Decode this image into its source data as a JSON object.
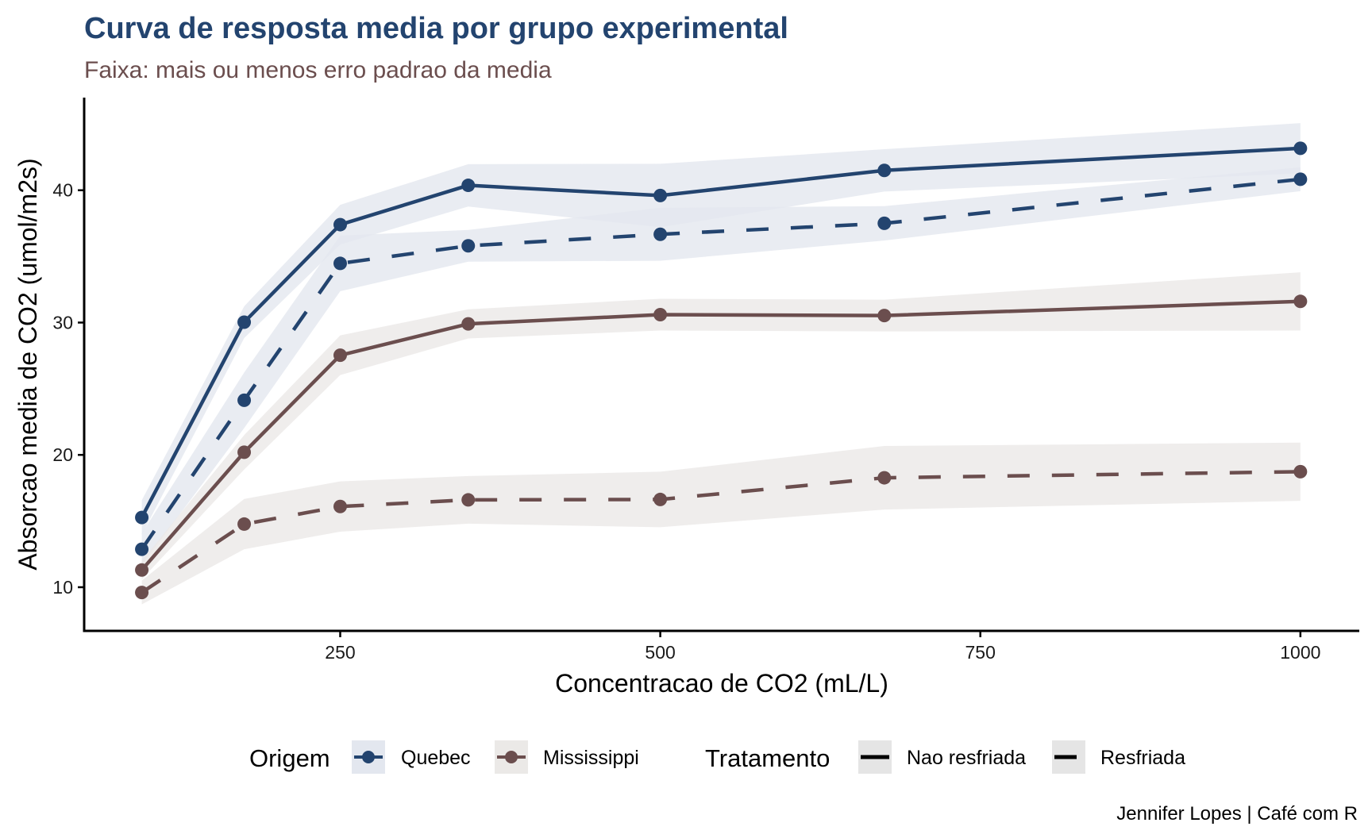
{
  "chart_data": {
    "type": "line",
    "title": "Curva de resposta media por grupo experimental",
    "subtitle": "Faixa: mais ou menos erro padrao da media",
    "xlabel": "Concentracao de CO2 (mL/L)",
    "ylabel": "Absorcao media de CO2 (umol/m2s)",
    "caption": "Jennifer Lopes | Café com R",
    "xlim": [
      50,
      1046
    ],
    "ylim": [
      6.7,
      47.0
    ],
    "x_ticks": [
      250,
      500,
      750,
      1000
    ],
    "x_tick_labels": [
      "250",
      "500",
      "750",
      "1000"
    ],
    "y_ticks": [
      10,
      20,
      30,
      40
    ],
    "y_tick_labels": [
      "10",
      "20",
      "30",
      "40"
    ],
    "grid": false,
    "legend_position": "bottom",
    "x": [
      95,
      175,
      250,
      350,
      500,
      675,
      1000
    ],
    "series": [
      {
        "name": "Quebec - Nao resfriada",
        "origem": "Quebec",
        "tratamento": "Nao resfriada",
        "linetype": "solid",
        "values": [
          15.27,
          30.03,
          37.4,
          40.37,
          39.6,
          41.5,
          43.17
        ],
        "se": [
          1.3,
          1.2,
          1.5,
          1.6,
          2.4,
          1.6,
          1.9
        ]
      },
      {
        "name": "Quebec - Resfriada",
        "origem": "Quebec",
        "tratamento": "Resfriada",
        "linetype": "dashed",
        "values": [
          12.87,
          24.13,
          34.47,
          35.8,
          36.67,
          37.5,
          40.83
        ],
        "se": [
          1.2,
          2.1,
          2.1,
          1.2,
          2.0,
          1.3,
          0.9
        ]
      },
      {
        "name": "Mississippi - Nao resfriada",
        "origem": "Mississippi",
        "tratamento": "Nao resfriada",
        "linetype": "solid",
        "values": [
          11.3,
          20.2,
          27.53,
          29.9,
          30.6,
          30.53,
          31.6
        ],
        "se": [
          0.7,
          1.3,
          1.5,
          1.1,
          1.2,
          1.2,
          2.2
        ]
      },
      {
        "name": "Mississippi - Resfriada",
        "origem": "Mississippi",
        "tratamento": "Resfriada",
        "linetype": "dashed",
        "values": [
          9.6,
          14.77,
          16.1,
          16.6,
          16.63,
          18.27,
          18.73
        ],
        "se": [
          0.9,
          1.9,
          1.9,
          1.8,
          2.1,
          2.4,
          2.2
        ]
      }
    ],
    "colors": {
      "Quebec": "#23446f",
      "Mississippi": "#6b4e4e",
      "Quebec_band": "#e3e7ef",
      "Mississippi_band": "#ebe9e7",
      "title": "#23446f",
      "subtitle": "#6b4e4e"
    },
    "legend": {
      "origem": {
        "title": "Origem",
        "items": [
          "Quebec",
          "Mississippi"
        ]
      },
      "tratamento": {
        "title": "Tratamento",
        "items": [
          "Nao resfriada",
          "Resfriada"
        ]
      }
    }
  }
}
